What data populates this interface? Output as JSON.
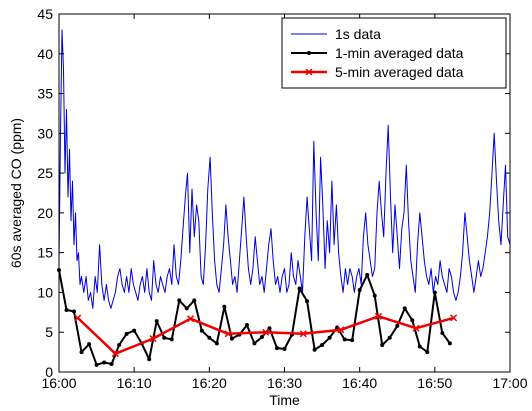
{
  "chart_data": {
    "type": "line",
    "xlabel": "Time",
    "ylabel": "60s averaged CO (ppm)",
    "xlim": [
      0,
      60
    ],
    "ylim": [
      0,
      45
    ],
    "x_ticks": [
      {
        "value": 0,
        "label": "16:00"
      },
      {
        "value": 10,
        "label": "16:10"
      },
      {
        "value": 20,
        "label": "16:20"
      },
      {
        "value": 30,
        "label": "16:30"
      },
      {
        "value": 40,
        "label": "16:40"
      },
      {
        "value": 50,
        "label": "16:50"
      },
      {
        "value": 60,
        "label": "17:00"
      }
    ],
    "y_ticks": [
      0,
      5,
      10,
      15,
      20,
      25,
      30,
      35,
      40,
      45
    ],
    "grid": false,
    "legend_position": "top-right",
    "series": [
      {
        "name": "1s data",
        "color": "#0000dd",
        "marker": "none",
        "points": [
          [
            0,
            14
          ],
          [
            0.2,
            30
          ],
          [
            0.4,
            43
          ],
          [
            0.6,
            38
          ],
          [
            0.8,
            25
          ],
          [
            1,
            33
          ],
          [
            1.2,
            22
          ],
          [
            1.4,
            28
          ],
          [
            1.6,
            19
          ],
          [
            1.8,
            24
          ],
          [
            2,
            16
          ],
          [
            2.2,
            20
          ],
          [
            2.4,
            14
          ],
          [
            2.6,
            15
          ],
          [
            2.8,
            11
          ],
          [
            3,
            12
          ],
          [
            3.3,
            10
          ],
          [
            3.6,
            12
          ],
          [
            3.9,
            9
          ],
          [
            4.2,
            10
          ],
          [
            4.5,
            8
          ],
          [
            4.8,
            12
          ],
          [
            5.1,
            10
          ],
          [
            5.4,
            16
          ],
          [
            5.7,
            11
          ],
          [
            6,
            9
          ],
          [
            6.3,
            11
          ],
          [
            6.6,
            9
          ],
          [
            6.9,
            8
          ],
          [
            7.2,
            9
          ],
          [
            7.5,
            10
          ],
          [
            7.8,
            12
          ],
          [
            8.1,
            13
          ],
          [
            8.4,
            11
          ],
          [
            8.7,
            10
          ],
          [
            9,
            12
          ],
          [
            9.3,
            10
          ],
          [
            9.6,
            13
          ],
          [
            9.9,
            11
          ],
          [
            10.2,
            10
          ],
          [
            10.5,
            9
          ],
          [
            10.8,
            11
          ],
          [
            11.1,
            12
          ],
          [
            11.4,
            10
          ],
          [
            11.7,
            13
          ],
          [
            12,
            10
          ],
          [
            12.3,
            9
          ],
          [
            12.6,
            14
          ],
          [
            12.9,
            11
          ],
          [
            13.2,
            10
          ],
          [
            13.5,
            12
          ],
          [
            13.8,
            11
          ],
          [
            14.1,
            10
          ],
          [
            14.4,
            12
          ],
          [
            14.7,
            13
          ],
          [
            15,
            11
          ],
          [
            15.3,
            16
          ],
          [
            15.6,
            12
          ],
          [
            15.9,
            11
          ],
          [
            16.2,
            14
          ],
          [
            16.5,
            18
          ],
          [
            16.8,
            22
          ],
          [
            17.1,
            25
          ],
          [
            17.4,
            15
          ],
          [
            17.7,
            23
          ],
          [
            18,
            17
          ],
          [
            18.3,
            21
          ],
          [
            18.6,
            19
          ],
          [
            18.9,
            12
          ],
          [
            19.2,
            11
          ],
          [
            19.5,
            16
          ],
          [
            19.8,
            23
          ],
          [
            20.1,
            27
          ],
          [
            20.4,
            20
          ],
          [
            20.7,
            14
          ],
          [
            21,
            11
          ],
          [
            21.3,
            10
          ],
          [
            21.6,
            13
          ],
          [
            21.9,
            16
          ],
          [
            22.2,
            21
          ],
          [
            22.5,
            17
          ],
          [
            22.8,
            14
          ],
          [
            23.1,
            11
          ],
          [
            23.4,
            12
          ],
          [
            23.7,
            10
          ],
          [
            24,
            14
          ],
          [
            24.3,
            18
          ],
          [
            24.6,
            22
          ],
          [
            24.9,
            17
          ],
          [
            25.2,
            13
          ],
          [
            25.5,
            11
          ],
          [
            25.8,
            13
          ],
          [
            26.1,
            17
          ],
          [
            26.4,
            14
          ],
          [
            26.7,
            11
          ],
          [
            27,
            12
          ],
          [
            27.3,
            10
          ],
          [
            27.6,
            13
          ],
          [
            27.9,
            16
          ],
          [
            28.2,
            18
          ],
          [
            28.5,
            14
          ],
          [
            28.8,
            11
          ],
          [
            29.1,
            12
          ],
          [
            29.4,
            10
          ],
          [
            29.7,
            12
          ],
          [
            30,
            13
          ],
          [
            30.3,
            10
          ],
          [
            30.6,
            11
          ],
          [
            30.9,
            15
          ],
          [
            31.2,
            12
          ],
          [
            31.5,
            11
          ],
          [
            31.8,
            14
          ],
          [
            32.1,
            12
          ],
          [
            32.4,
            10
          ],
          [
            32.7,
            17
          ],
          [
            33,
            22
          ],
          [
            33.3,
            18
          ],
          [
            33.6,
            14
          ],
          [
            33.9,
            29
          ],
          [
            34.2,
            20
          ],
          [
            34.5,
            14
          ],
          [
            34.8,
            27
          ],
          [
            35.1,
            21
          ],
          [
            35.4,
            13
          ],
          [
            35.7,
            19
          ],
          [
            36,
            15
          ],
          [
            36.3,
            24
          ],
          [
            36.6,
            16
          ],
          [
            36.9,
            21
          ],
          [
            37.2,
            15
          ],
          [
            37.5,
            12
          ],
          [
            37.8,
            10
          ],
          [
            38.1,
            13
          ],
          [
            38.4,
            11
          ],
          [
            38.7,
            13
          ],
          [
            39,
            12
          ],
          [
            39.3,
            10
          ],
          [
            39.6,
            12
          ],
          [
            39.9,
            13
          ],
          [
            40.2,
            11
          ],
          [
            40.5,
            17
          ],
          [
            40.8,
            20
          ],
          [
            41.1,
            16
          ],
          [
            41.4,
            14
          ],
          [
            41.7,
            12
          ],
          [
            42,
            13
          ],
          [
            42.3,
            20
          ],
          [
            42.6,
            24
          ],
          [
            42.9,
            20
          ],
          [
            43.2,
            17
          ],
          [
            43.5,
            25
          ],
          [
            43.8,
            31
          ],
          [
            44.1,
            22
          ],
          [
            44.4,
            15
          ],
          [
            44.7,
            21
          ],
          [
            45,
            17
          ],
          [
            45.3,
            13
          ],
          [
            45.6,
            18
          ],
          [
            45.9,
            20
          ],
          [
            46.2,
            26
          ],
          [
            46.5,
            19
          ],
          [
            46.8,
            14
          ],
          [
            47.1,
            12
          ],
          [
            47.4,
            10
          ],
          [
            47.7,
            16
          ],
          [
            48,
            20
          ],
          [
            48.3,
            17
          ],
          [
            48.6,
            14
          ],
          [
            48.9,
            12
          ],
          [
            49.2,
            11
          ],
          [
            49.5,
            13
          ],
          [
            49.8,
            10
          ],
          [
            50.1,
            12
          ],
          [
            50.4,
            11
          ],
          [
            50.7,
            14
          ],
          [
            51,
            12
          ],
          [
            51.3,
            11
          ],
          [
            51.6,
            10
          ],
          [
            51.9,
            13
          ],
          [
            52.2,
            12
          ],
          [
            52.5,
            10
          ],
          [
            52.8,
            9
          ],
          [
            53.1,
            10
          ],
          [
            53.4,
            12
          ],
          [
            53.7,
            15
          ],
          [
            54,
            20
          ],
          [
            54.3,
            17
          ],
          [
            54.6,
            14
          ],
          [
            54.9,
            12
          ],
          [
            55.2,
            10
          ],
          [
            55.5,
            12
          ],
          [
            55.8,
            14
          ],
          [
            56.1,
            12
          ],
          [
            56.4,
            13
          ],
          [
            56.7,
            15
          ],
          [
            57,
            17
          ],
          [
            57.3,
            20
          ],
          [
            57.6,
            25
          ],
          [
            57.9,
            30
          ],
          [
            58.2,
            24
          ],
          [
            58.5,
            19
          ],
          [
            58.8,
            16
          ],
          [
            59.1,
            21
          ],
          [
            59.4,
            26
          ],
          [
            59.7,
            17
          ],
          [
            60,
            16
          ]
        ]
      },
      {
        "name": "1-min averaged data",
        "color": "#000000",
        "marker": "dot",
        "points": [
          [
            0,
            12.8
          ],
          [
            1,
            7.8
          ],
          [
            2,
            7.6
          ],
          [
            3,
            2.5
          ],
          [
            4,
            3.5
          ],
          [
            5,
            0.9
          ],
          [
            6,
            1.2
          ],
          [
            7,
            1.0
          ],
          [
            8,
            3.4
          ],
          [
            9,
            4.8
          ],
          [
            10,
            5.2
          ],
          [
            11,
            3.6
          ],
          [
            12,
            1.6
          ],
          [
            13,
            6.4
          ],
          [
            14,
            4.3
          ],
          [
            15,
            4.1
          ],
          [
            16,
            9.0
          ],
          [
            17,
            8.0
          ],
          [
            18,
            9.0
          ],
          [
            19,
            5.2
          ],
          [
            20,
            4.3
          ],
          [
            21,
            3.6
          ],
          [
            22,
            8.2
          ],
          [
            23,
            4.2
          ],
          [
            24,
            4.7
          ],
          [
            25,
            5.9
          ],
          [
            26,
            3.6
          ],
          [
            27,
            4.4
          ],
          [
            28,
            5.5
          ],
          [
            29,
            3.0
          ],
          [
            30,
            2.9
          ],
          [
            31,
            4.7
          ],
          [
            32,
            10.5
          ],
          [
            33,
            8.9
          ],
          [
            34,
            2.8
          ],
          [
            35,
            3.4
          ],
          [
            36,
            4.3
          ],
          [
            37,
            5.6
          ],
          [
            38,
            4.1
          ],
          [
            39,
            4.0
          ],
          [
            40,
            10.3
          ],
          [
            41,
            12.2
          ],
          [
            42,
            9.6
          ],
          [
            43,
            3.4
          ],
          [
            44,
            4.3
          ],
          [
            45,
            5.8
          ],
          [
            46,
            8.0
          ],
          [
            47,
            6.5
          ],
          [
            48,
            3.2
          ],
          [
            49,
            2.5
          ],
          [
            50,
            10.0
          ],
          [
            51,
            4.9
          ],
          [
            52,
            3.6
          ]
        ]
      },
      {
        "name": "5-min averaged data",
        "color": "#ee0000",
        "marker": "x",
        "points": [
          [
            2.5,
            6.8
          ],
          [
            7.5,
            2.3
          ],
          [
            12.5,
            4.2
          ],
          [
            17.5,
            6.7
          ],
          [
            22.5,
            4.8
          ],
          [
            27.5,
            5.0
          ],
          [
            32.5,
            4.8
          ],
          [
            37.5,
            5.3
          ],
          [
            42.5,
            7.0
          ],
          [
            47.5,
            5.5
          ],
          [
            52.5,
            6.8
          ]
        ]
      }
    ]
  }
}
